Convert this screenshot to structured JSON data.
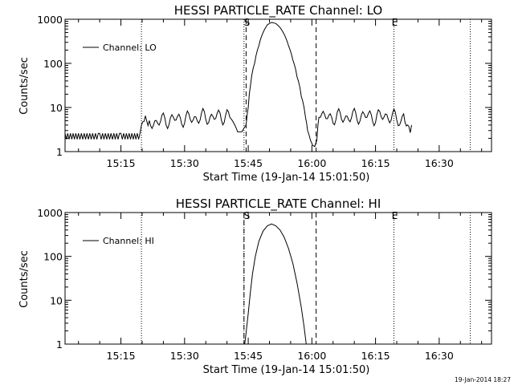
{
  "chart_data": [
    {
      "type": "line",
      "title": "HESSI PARTICLE_RATE Channel: LO",
      "xlabel": "Start Time (19-Jan-14 15:01:50)",
      "ylabel": "Counts/sec",
      "yscale": "log",
      "ylim": [
        1,
        1000
      ],
      "yticks": [
        "1",
        "10",
        "100",
        "1000"
      ],
      "xlim": [
        "15:01:50",
        "16:42:20"
      ],
      "xticks": [
        "15:15",
        "15:30",
        "15:45",
        "16:00",
        "16:15",
        "16:30"
      ],
      "legend": "top-left",
      "markers": [
        {
          "label": "S",
          "time": "15:44:30"
        },
        {
          "label": "E",
          "time": "16:19:20"
        }
      ],
      "dotted_lines": [
        "15:19:50",
        "15:44:00",
        "16:19:20",
        "16:37:20"
      ],
      "dashed_lines": [
        "15:44:30",
        "16:01:00"
      ],
      "series": [
        {
          "name": "Channel: LO",
          "x": [
            "15:01:50",
            "15:05:00",
            "15:10:00",
            "15:15:00",
            "15:19:30",
            "15:19:50",
            "15:22:00",
            "15:25:00",
            "15:28:00",
            "15:31:00",
            "15:34:00",
            "15:37:00",
            "15:40:00",
            "15:41:00",
            "15:42:30",
            "15:43:30",
            "15:44:30",
            "15:45:00",
            "15:45:30",
            "15:46:30",
            "15:47:30",
            "15:48:30",
            "15:49:30",
            "15:50:30",
            "15:51:30",
            "15:52:30",
            "15:53:30",
            "15:54:30",
            "15:55:30",
            "15:56:30",
            "15:57:30",
            "15:58:30",
            "15:59:00",
            "15:59:40",
            "16:00:10",
            "16:00:40",
            "16:01:10",
            "16:01:40",
            "16:03:00",
            "16:06:00",
            "16:09:00",
            "16:12:00",
            "16:15:00",
            "16:18:00",
            "16:21:00",
            "16:23:30"
          ],
          "y": [
            2.2,
            2.2,
            2.2,
            2.2,
            2.2,
            4.0,
            4.5,
            5.0,
            5.5,
            5.5,
            6.0,
            6.0,
            6.5,
            5.5,
            2.8,
            2.8,
            4,
            10,
            30,
            100,
            250,
            500,
            750,
            850,
            800,
            650,
            450,
            250,
            120,
            50,
            18,
            6,
            3,
            1.8,
            1.4,
            1.3,
            1.8,
            6.0,
            6.0,
            6.0,
            6.0,
            6.5,
            6.0,
            6.5,
            5.0,
            4.0
          ]
        }
      ]
    },
    {
      "type": "line",
      "title": "HESSI PARTICLE_RATE Channel: HI",
      "xlabel": "Start Time (19-Jan-14 15:01:50)",
      "ylabel": "Counts/sec",
      "yscale": "log",
      "ylim": [
        1,
        1000
      ],
      "yticks": [
        "1",
        "10",
        "100",
        "1000"
      ],
      "xlim": [
        "15:01:50",
        "16:42:20"
      ],
      "xticks": [
        "15:15",
        "15:30",
        "15:45",
        "16:00",
        "16:15",
        "16:30"
      ],
      "legend": "top-left",
      "markers": [
        {
          "label": "S",
          "time": "15:44:30"
        },
        {
          "label": "E",
          "time": "16:19:20"
        }
      ],
      "dotted_lines": [
        "15:19:50",
        "15:44:00",
        "16:19:20",
        "16:37:20"
      ],
      "dashed_lines": [
        "15:44:00",
        "16:01:00"
      ],
      "series": [
        {
          "name": "Channel: HI",
          "x": [
            "15:44:10",
            "15:44:30",
            "15:45:00",
            "15:45:30",
            "15:46:00",
            "15:46:40",
            "15:47:30",
            "15:48:30",
            "15:49:30",
            "15:50:30",
            "15:51:30",
            "15:52:30",
            "15:53:30",
            "15:54:30",
            "15:55:30",
            "15:56:30",
            "15:57:30",
            "15:58:10",
            "15:58:40"
          ],
          "y": [
            1,
            1.8,
            5,
            15,
            40,
            100,
            220,
            380,
            500,
            550,
            500,
            400,
            270,
            150,
            70,
            25,
            7,
            2.5,
            1
          ]
        }
      ]
    }
  ],
  "footer": {
    "timestamp": "19-Jan-2014 18:27"
  }
}
